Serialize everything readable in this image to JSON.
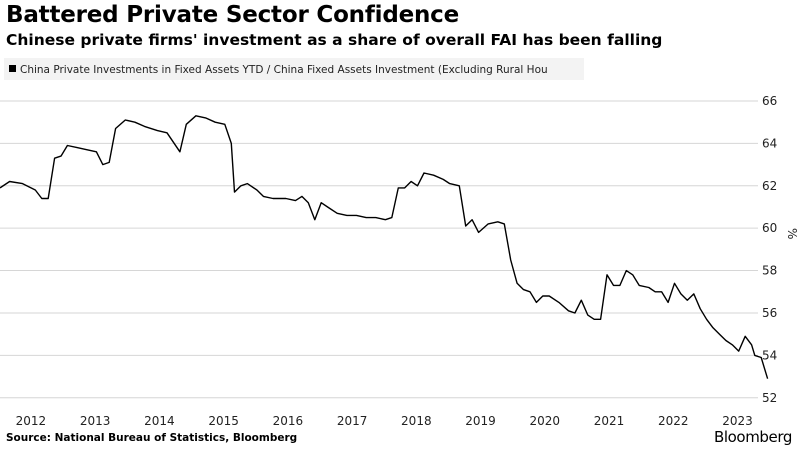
{
  "header": {
    "title": "Battered Private Sector Confidence",
    "subtitle": "Chinese private firms' investment as a share of overall FAI has been falling"
  },
  "footer": {
    "source": "Source: National Bureau of Statistics, Bloomberg",
    "brand": "Bloomberg"
  },
  "chart_data": {
    "type": "line",
    "legend": "China Private Investments in Fixed Assets YTD / China Fixed Assets Investment (Excluding Rural Hou",
    "yunit": "%",
    "ylim": [
      51.8,
      66.8
    ],
    "yticks": [
      52,
      54,
      56,
      58,
      60,
      62,
      64,
      66
    ],
    "xlim": [
      2011.55,
      2023.35
    ],
    "xticks": [
      {
        "label": "2012",
        "x": 2012
      },
      {
        "label": "2013",
        "x": 2013
      },
      {
        "label": "2014",
        "x": 2014
      },
      {
        "label": "2015",
        "x": 2015
      },
      {
        "label": "2016",
        "x": 2016
      },
      {
        "label": "2017",
        "x": 2017
      },
      {
        "label": "2018",
        "x": 2018
      },
      {
        "label": "2019",
        "x": 2019
      },
      {
        "label": "2020",
        "x": 2020
      },
      {
        "label": "2021",
        "x": 2021
      },
      {
        "label": "2022",
        "x": 2022
      },
      {
        "label": "2023",
        "x": 2023
      }
    ],
    "grid": "horizontal",
    "color": "#000000",
    "series": [
      {
        "points": [
          [
            2011.55,
            61.9
          ],
          [
            2011.7,
            62.2
          ],
          [
            2011.9,
            62.1
          ],
          [
            2012.1,
            61.8
          ],
          [
            2012.2,
            61.4
          ],
          [
            2012.3,
            61.4
          ],
          [
            2012.4,
            63.3
          ],
          [
            2012.5,
            63.4
          ],
          [
            2012.6,
            63.9
          ],
          [
            2012.75,
            63.8
          ],
          [
            2012.9,
            63.7
          ],
          [
            2013.05,
            63.6
          ],
          [
            2013.15,
            63.0
          ],
          [
            2013.25,
            63.1
          ],
          [
            2013.35,
            64.7
          ],
          [
            2013.5,
            65.1
          ],
          [
            2013.65,
            65.0
          ],
          [
            2013.8,
            64.8
          ],
          [
            2014.0,
            64.6
          ],
          [
            2014.15,
            64.5
          ],
          [
            2014.35,
            63.6
          ],
          [
            2014.45,
            64.9
          ],
          [
            2014.6,
            65.3
          ],
          [
            2014.75,
            65.2
          ],
          [
            2014.9,
            65.0
          ],
          [
            2015.05,
            64.9
          ],
          [
            2015.15,
            64.0
          ],
          [
            2015.2,
            61.7
          ],
          [
            2015.3,
            62.0
          ],
          [
            2015.4,
            62.1
          ],
          [
            2015.55,
            61.8
          ],
          [
            2015.65,
            61.5
          ],
          [
            2015.8,
            61.4
          ],
          [
            2016.0,
            61.4
          ],
          [
            2016.15,
            61.3
          ],
          [
            2016.25,
            61.5
          ],
          [
            2016.35,
            61.2
          ],
          [
            2016.45,
            60.4
          ],
          [
            2016.55,
            61.2
          ],
          [
            2016.65,
            61.0
          ],
          [
            2016.8,
            60.7
          ],
          [
            2016.95,
            60.6
          ],
          [
            2017.1,
            60.6
          ],
          [
            2017.25,
            60.5
          ],
          [
            2017.4,
            60.5
          ],
          [
            2017.55,
            60.4
          ],
          [
            2017.65,
            60.5
          ],
          [
            2017.75,
            61.9
          ],
          [
            2017.85,
            61.9
          ],
          [
            2017.95,
            62.2
          ],
          [
            2018.05,
            62.0
          ],
          [
            2018.15,
            62.6
          ],
          [
            2018.3,
            62.5
          ],
          [
            2018.45,
            62.3
          ],
          [
            2018.55,
            62.1
          ],
          [
            2018.7,
            62.0
          ],
          [
            2018.8,
            60.1
          ],
          [
            2018.9,
            60.4
          ],
          [
            2019.0,
            59.8
          ],
          [
            2019.15,
            60.2
          ],
          [
            2019.3,
            60.3
          ],
          [
            2019.4,
            60.2
          ],
          [
            2019.5,
            58.5
          ],
          [
            2019.6,
            57.4
          ],
          [
            2019.7,
            57.1
          ],
          [
            2019.8,
            57.0
          ],
          [
            2019.9,
            56.5
          ],
          [
            2020.0,
            56.8
          ],
          [
            2020.1,
            56.8
          ],
          [
            2020.25,
            56.5
          ],
          [
            2020.4,
            56.1
          ],
          [
            2020.5,
            56.0
          ],
          [
            2020.6,
            56.6
          ],
          [
            2020.7,
            55.9
          ],
          [
            2020.8,
            55.7
          ],
          [
            2020.9,
            55.7
          ],
          [
            2021.0,
            57.8
          ],
          [
            2021.1,
            57.3
          ],
          [
            2021.2,
            57.3
          ],
          [
            2021.3,
            58.0
          ],
          [
            2021.4,
            57.8
          ],
          [
            2021.5,
            57.3
          ],
          [
            2021.65,
            57.2
          ],
          [
            2021.75,
            57.0
          ],
          [
            2021.85,
            57.0
          ],
          [
            2021.95,
            56.5
          ],
          [
            2022.05,
            57.4
          ],
          [
            2022.15,
            56.9
          ],
          [
            2022.25,
            56.6
          ],
          [
            2022.35,
            56.9
          ],
          [
            2022.45,
            56.2
          ],
          [
            2022.55,
            55.7
          ],
          [
            2022.65,
            55.3
          ],
          [
            2022.75,
            55.0
          ],
          [
            2022.85,
            54.7
          ],
          [
            2022.95,
            54.5
          ],
          [
            2023.05,
            54.2
          ],
          [
            2023.15,
            54.9
          ],
          [
            2023.25,
            54.5
          ],
          [
            2023.3,
            54.0
          ],
          [
            2023.4,
            53.9
          ],
          [
            2023.5,
            52.9
          ]
        ]
      }
    ]
  }
}
